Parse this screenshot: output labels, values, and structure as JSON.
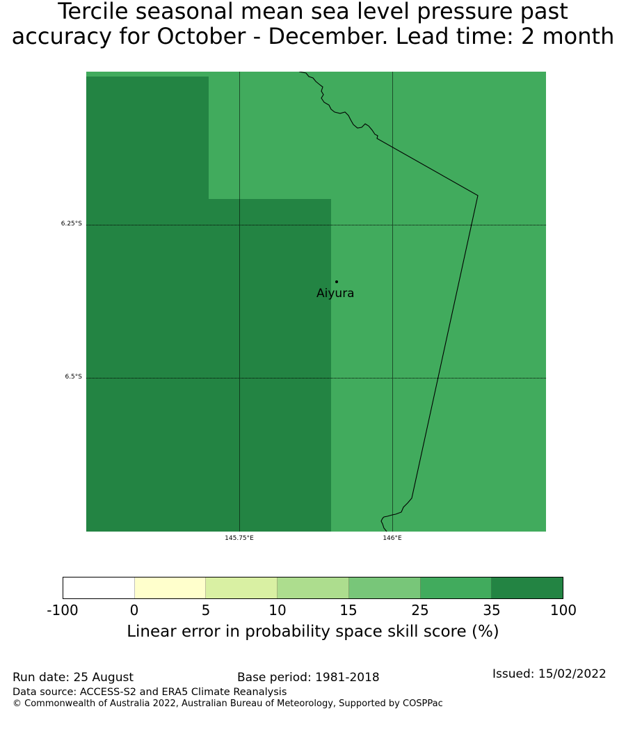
{
  "title": {
    "line1": "Tercile seasonal mean sea level pressure past",
    "line2": "accuracy for October - December. Lead time: 2 month"
  },
  "map": {
    "lat_ticks": [
      "6.25°S",
      "6.5°S"
    ],
    "lon_ticks": [
      "145.75°E",
      "146°E"
    ],
    "place": {
      "name": "Aiyura"
    },
    "field_colors": {
      "35-100": "#238443",
      "25-35": "#41ab5d"
    }
  },
  "colorbar": {
    "ticks": [
      "-100",
      "0",
      "5",
      "10",
      "15",
      "25",
      "35",
      "100"
    ],
    "colors": [
      "#ffffff",
      "#ffffcc",
      "#d9f0a3",
      "#addd8e",
      "#78c679",
      "#41ab5d",
      "#238443"
    ],
    "label": "Linear error in probability space skill score (%)"
  },
  "footer": {
    "run_date": "Run date: 25 August",
    "base_period": "Base period: 1981-2018",
    "issued": "Issued: 15/02/2022",
    "data_source": "Data source: ACCESS-S2 and ERA5 Climate Reanalysis",
    "copyright": "© Commonwealth of Australia 2022, Australian Bureau of Meteorology, Supported by COSPPac"
  }
}
